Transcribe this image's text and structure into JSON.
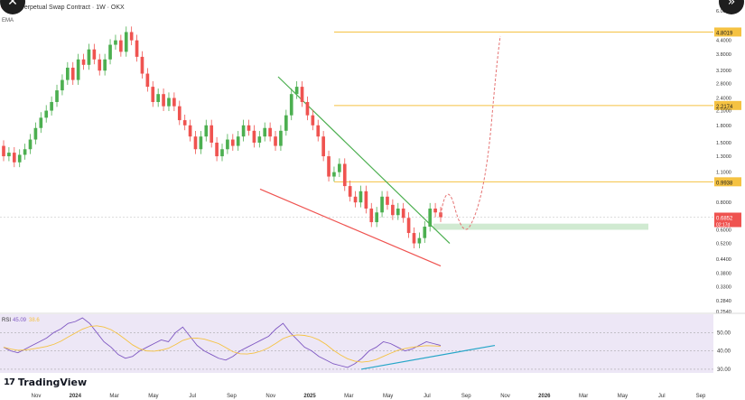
{
  "header": {
    "title": "DT Perpetual Swap Contract · 1W · OKX",
    "indicator": "EMA"
  },
  "rsi_panel": {
    "label": "RSI",
    "value": "45.09",
    "value2": "38.6"
  },
  "brand": {
    "name": "TradingView",
    "mark": "17"
  },
  "nav": {
    "prev_icon": "chevron-left-icon",
    "next_icon": "chevron-right-icon",
    "prev_glyph": "✕",
    "next_glyph": "»"
  },
  "colors": {
    "up": "#26a69a",
    "up_fill": "#4caf50",
    "down": "#ef5350",
    "level": "#f5c242",
    "resistance": "#4caf50",
    "support": "#ef5350",
    "rsi_line": "#7e57c2",
    "rsi_ma": "#f5c242",
    "rsi_bg": "#ede7f6",
    "rsi_trend": "#26a6c8",
    "zone": "#c8e6c9",
    "projection": "#e57373"
  },
  "chart_data": {
    "type": "candlestick",
    "scale": "log",
    "price_axis_ticks": [
      "6.0000",
      "4.8019",
      "4.4000",
      "3.8000",
      "3.2000",
      "2.8000",
      "2.4000",
      "2.2174",
      "2.1000",
      "1.8000",
      "1.5000",
      "1.3000",
      "1.1000",
      "0.9938",
      "0.8000",
      "0.6852",
      "0.6000",
      "0.5200",
      "0.4400",
      "0.3800",
      "0.3300",
      "0.2840",
      "0.2540"
    ],
    "time_axis_ticks": [
      "Nov",
      "2024",
      "Mar",
      "May",
      "Jul",
      "Sep",
      "Nov",
      "2025",
      "Mar",
      "May",
      "Jul",
      "Sep",
      "Nov",
      "2026",
      "Mar",
      "May",
      "Jul",
      "Sep"
    ],
    "rsi_axis_ticks": [
      "50.00",
      "40.00",
      "30.00"
    ],
    "horizontal_levels": [
      {
        "price": 4.8019,
        "label": "4.8019"
      },
      {
        "price": 2.2174,
        "label": "2.2174"
      },
      {
        "price": 0.9938,
        "label": "0.9938"
      }
    ],
    "last_price": {
      "price": 0.6852,
      "label": "0.6852",
      "sublabel": "02:17d"
    },
    "candles": [
      [
        1.45,
        1.3
      ],
      [
        1.3,
        1.35
      ],
      [
        1.35,
        1.22
      ],
      [
        1.22,
        1.32
      ],
      [
        1.32,
        1.4
      ],
      [
        1.4,
        1.55
      ],
      [
        1.55,
        1.75
      ],
      [
        1.75,
        1.95
      ],
      [
        1.95,
        2.1
      ],
      [
        2.1,
        2.3
      ],
      [
        2.3,
        2.6
      ],
      [
        2.6,
        2.9
      ],
      [
        2.9,
        3.3
      ],
      [
        3.3,
        2.9
      ],
      [
        2.9,
        3.6
      ],
      [
        3.6,
        3.4
      ],
      [
        3.4,
        4.0
      ],
      [
        4.0,
        3.6
      ],
      [
        3.6,
        3.2
      ],
      [
        3.2,
        3.6
      ],
      [
        3.6,
        4.2
      ],
      [
        4.2,
        4.4
      ],
      [
        4.4,
        3.9
      ],
      [
        3.9,
        4.8
      ],
      [
        4.8,
        4.4
      ],
      [
        4.4,
        3.7
      ],
      [
        3.7,
        3.1
      ],
      [
        3.1,
        2.7
      ],
      [
        2.7,
        2.3
      ],
      [
        2.3,
        2.5
      ],
      [
        2.5,
        2.2
      ],
      [
        2.2,
        2.4
      ],
      [
        2.4,
        2.2
      ],
      [
        2.2,
        1.9
      ],
      [
        1.9,
        1.8
      ],
      [
        1.8,
        1.6
      ],
      [
        1.6,
        1.4
      ],
      [
        1.4,
        1.6
      ],
      [
        1.6,
        1.8
      ],
      [
        1.8,
        1.5
      ],
      [
        1.5,
        1.3
      ],
      [
        1.3,
        1.4
      ],
      [
        1.4,
        1.55
      ],
      [
        1.55,
        1.45
      ],
      [
        1.45,
        1.6
      ],
      [
        1.6,
        1.8
      ],
      [
        1.8,
        1.7
      ],
      [
        1.7,
        1.5
      ],
      [
        1.5,
        1.6
      ],
      [
        1.6,
        1.75
      ],
      [
        1.75,
        1.6
      ],
      [
        1.6,
        1.45
      ],
      [
        1.45,
        1.7
      ],
      [
        1.7,
        2.0
      ],
      [
        2.0,
        2.5
      ],
      [
        2.5,
        2.7
      ],
      [
        2.7,
        2.3
      ],
      [
        2.3,
        2.0
      ],
      [
        2.0,
        1.8
      ],
      [
        1.8,
        1.6
      ],
      [
        1.6,
        1.3
      ],
      [
        1.3,
        1.05
      ],
      [
        1.05,
        1.1
      ],
      [
        1.1,
        1.2
      ],
      [
        1.2,
        0.95
      ],
      [
        0.95,
        0.85
      ],
      [
        0.85,
        0.8
      ],
      [
        0.8,
        0.9
      ],
      [
        0.9,
        0.75
      ],
      [
        0.75,
        0.65
      ],
      [
        0.65,
        0.72
      ],
      [
        0.72,
        0.85
      ],
      [
        0.85,
        0.78
      ],
      [
        0.78,
        0.7
      ],
      [
        0.7,
        0.75
      ],
      [
        0.75,
        0.68
      ],
      [
        0.68,
        0.58
      ],
      [
        0.58,
        0.52
      ],
      [
        0.52,
        0.55
      ],
      [
        0.55,
        0.62
      ],
      [
        0.62,
        0.75
      ],
      [
        0.75,
        0.72
      ],
      [
        0.72,
        0.6852
      ]
    ],
    "rsi_values": [
      42,
      40,
      39,
      41,
      43,
      45,
      47,
      50,
      52,
      55,
      56,
      58,
      55,
      50,
      45,
      42,
      38,
      36,
      37,
      40,
      42,
      44,
      46,
      45,
      50,
      53,
      48,
      43,
      40,
      38,
      36,
      35,
      37,
      40,
      42,
      44,
      46,
      48,
      52,
      55,
      50,
      46,
      42,
      40,
      37,
      35,
      33,
      32,
      31,
      33,
      36,
      40,
      42,
      45,
      44,
      42,
      40,
      41,
      43,
      45,
      44,
      43
    ],
    "annotations": [
      {
        "type": "trendline",
        "name": "resistance",
        "color": "green"
      },
      {
        "type": "trendline",
        "name": "support",
        "color": "red"
      },
      {
        "type": "zone",
        "name": "support zone",
        "color": "light green"
      },
      {
        "type": "projection",
        "name": "projected path",
        "style": "dashed"
      },
      {
        "type": "trendline",
        "name": "RSI divergence",
        "color": "teal"
      }
    ]
  }
}
